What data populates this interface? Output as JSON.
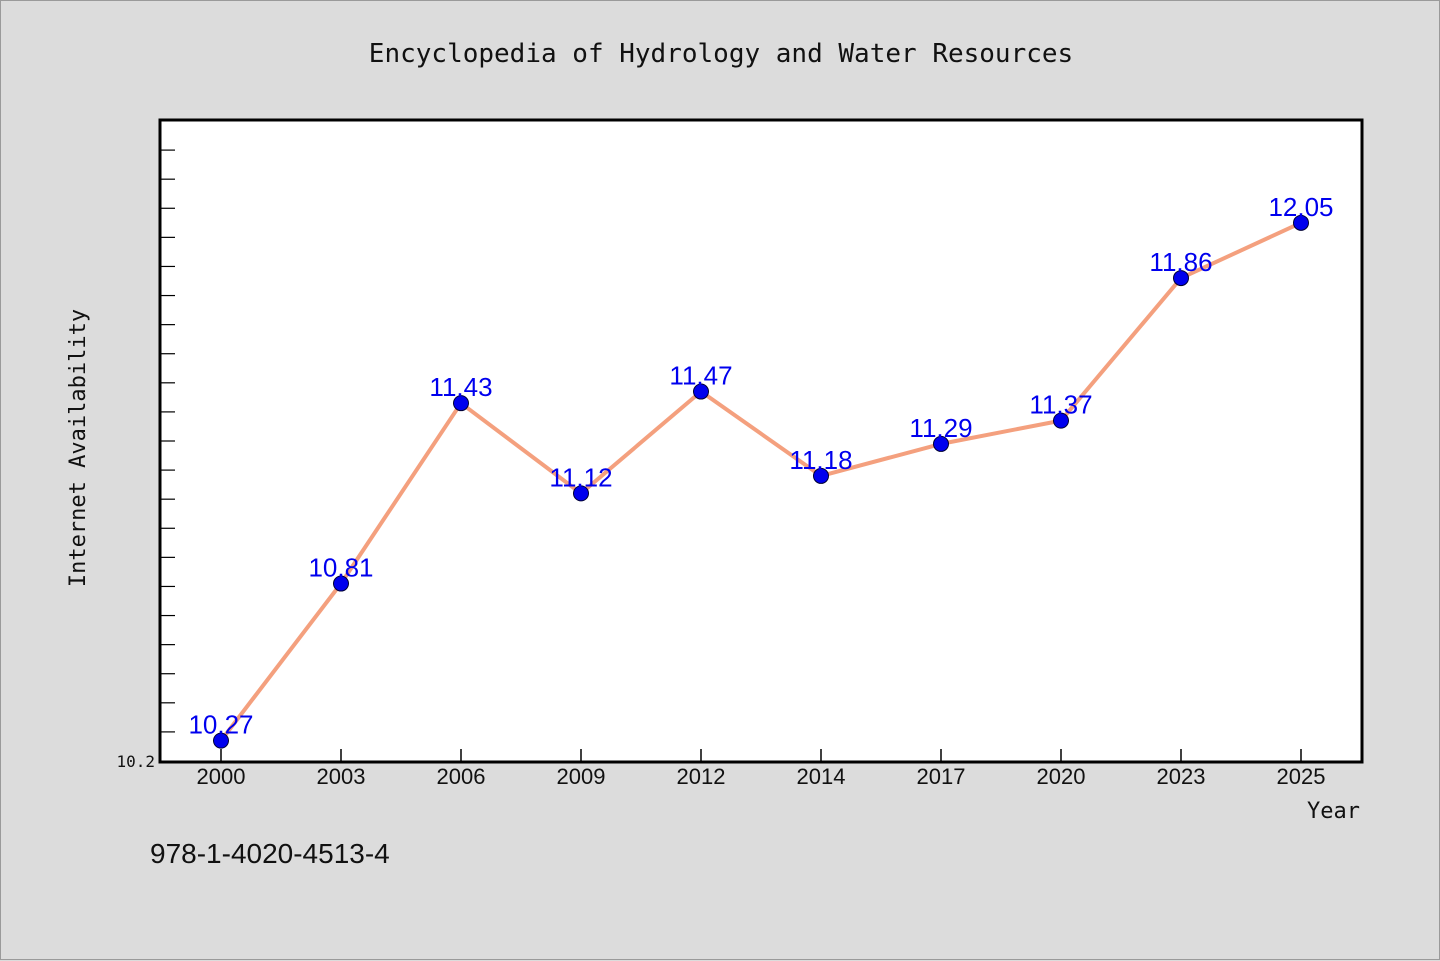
{
  "chart_data": {
    "type": "line",
    "title": "Encyclopedia of Hydrology and Water Resources",
    "xlabel": "Year",
    "ylabel": "Internet Availability",
    "categories": [
      "2000",
      "2003",
      "2006",
      "2009",
      "2012",
      "2014",
      "2017",
      "2020",
      "2023",
      "2025"
    ],
    "series": [
      {
        "values": [
          10.27,
          10.81,
          11.43,
          11.12,
          11.47,
          11.18,
          11.29,
          11.37,
          11.86,
          12.05
        ]
      }
    ],
    "data_labels": [
      "10.27",
      "10.81",
      "11.43",
      "11.12",
      "11.47",
      "11.18",
      "11.29",
      "11.37",
      "11.86",
      "12.05"
    ],
    "ylim": [
      10.2,
      12.4
    ],
    "y_tick_labels": [
      "10.2"
    ],
    "grid": false,
    "line_color": "#f4a07e",
    "marker_color": "#0000ee",
    "label_color": "#0000ee",
    "plot_background": "#ffffff",
    "figure_background": "#dcdcdc"
  },
  "footer": {
    "isbn": "978-1-4020-4513-4"
  }
}
